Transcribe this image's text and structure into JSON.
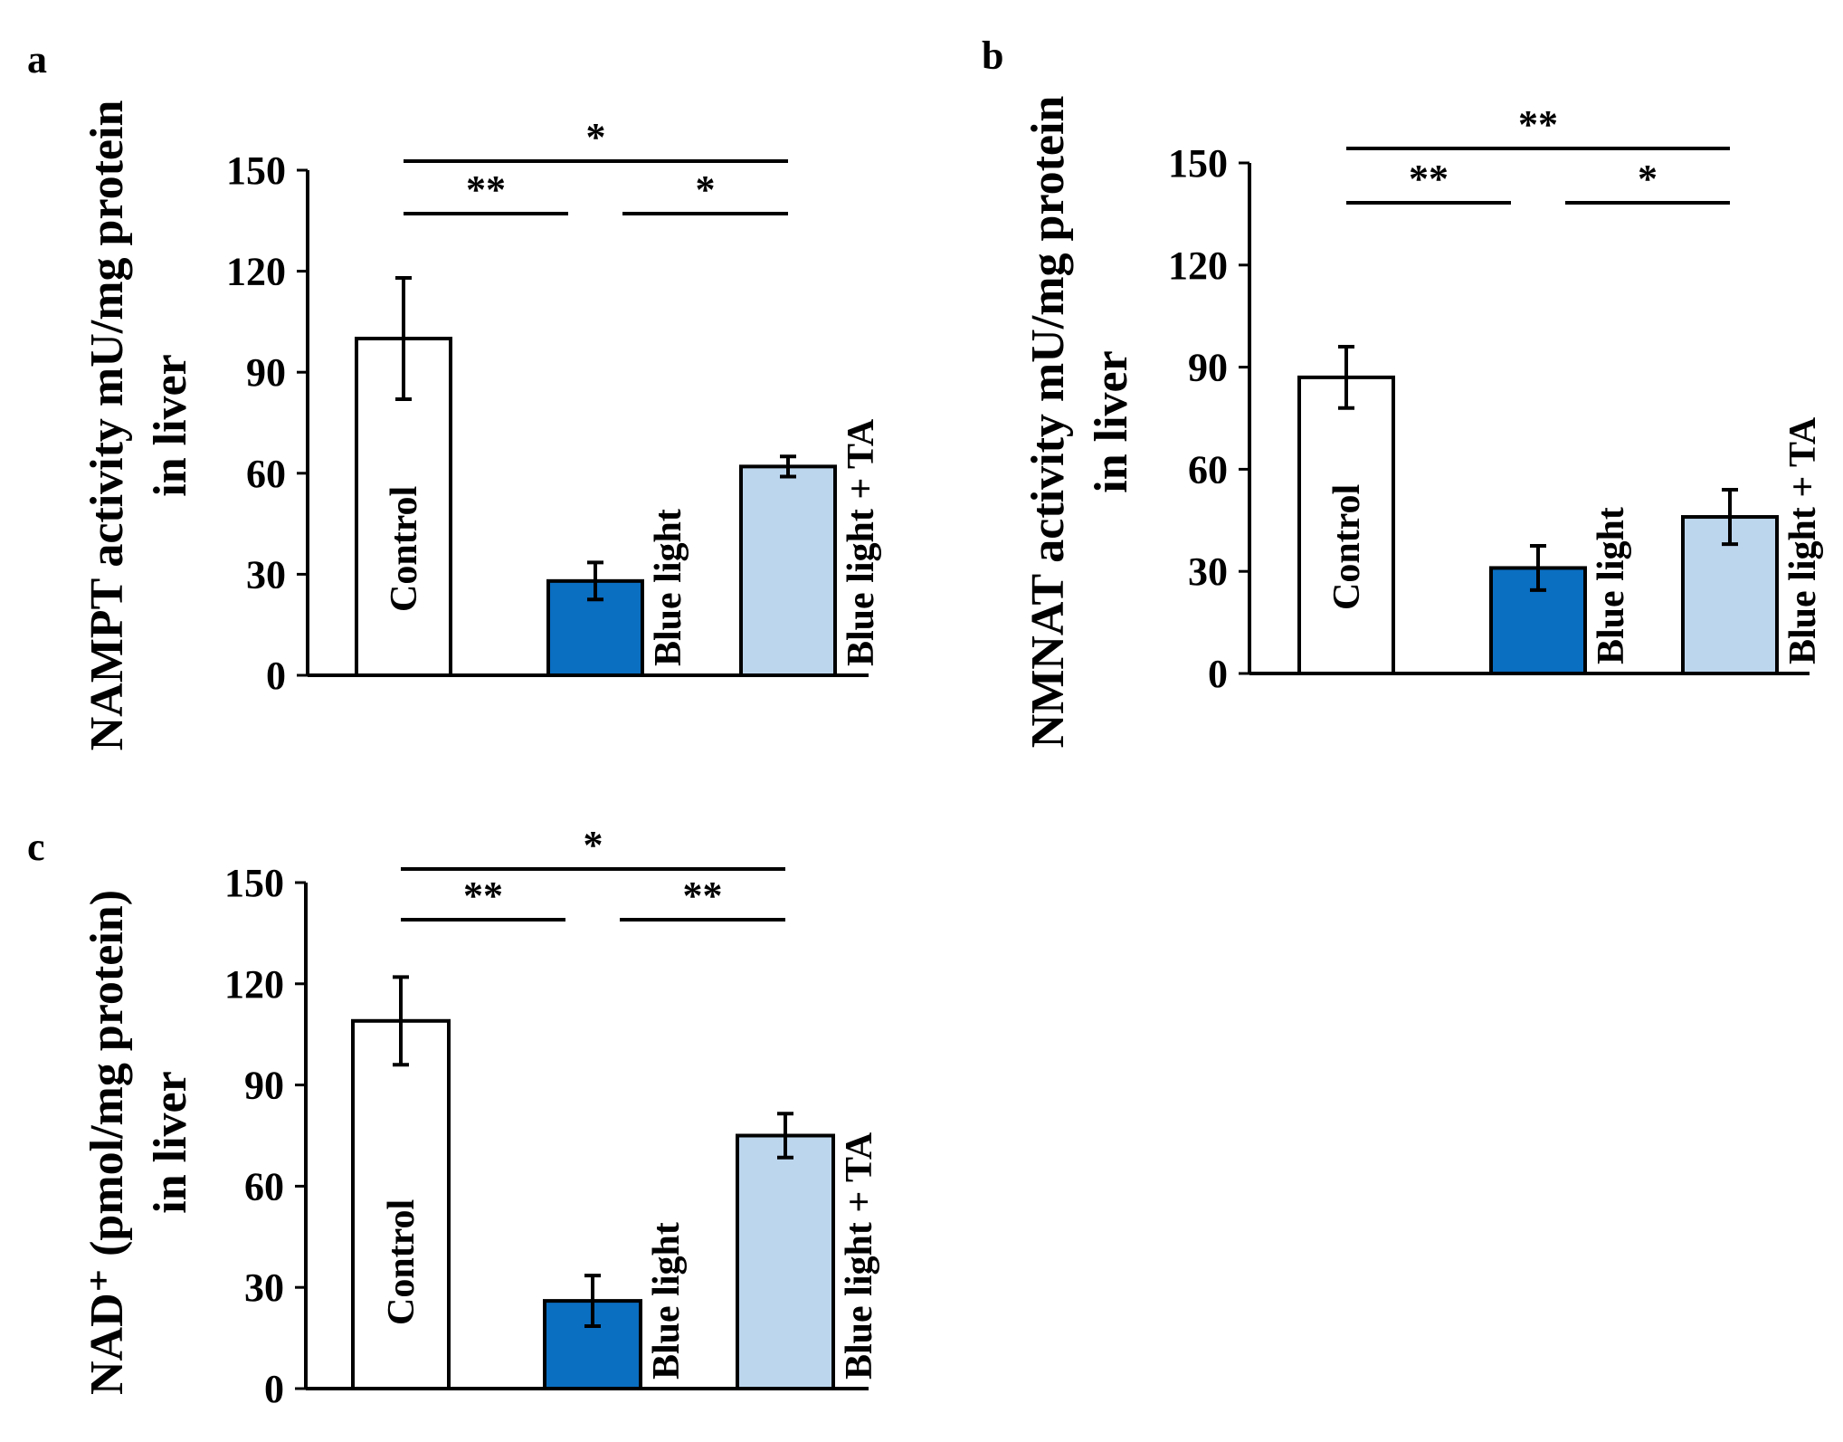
{
  "chart_data": [
    {
      "type": "bar",
      "panel": "a",
      "ylabel_lines": [
        "NAMPT activity mU/mg protein",
        "in liver"
      ],
      "ylim": [
        0,
        150
      ],
      "yticks": [
        "0",
        "30",
        "60",
        "90",
        "120",
        "150"
      ],
      "categories": [
        "Control",
        "Blue light",
        "Blue light + TA"
      ],
      "values": [
        100,
        28,
        62
      ],
      "errors": [
        18,
        5.5,
        3
      ],
      "colors": [
        "#ffffff",
        "#0a6ec1",
        "#bcd6ee"
      ],
      "significance": [
        {
          "from": 0,
          "to": 1,
          "label": "**",
          "level": 1
        },
        {
          "from": 1,
          "to": 2,
          "label": "*",
          "level": 1
        },
        {
          "from": 0,
          "to": 2,
          "label": "*",
          "level": 2
        }
      ]
    },
    {
      "type": "bar",
      "panel": "b",
      "ylabel_lines": [
        "NMNAT activity mU/mg protein",
        "in liver"
      ],
      "ylim": [
        0,
        150
      ],
      "yticks": [
        "0",
        "30",
        "60",
        "90",
        "120",
        "150"
      ],
      "categories": [
        "Control",
        "Blue light",
        "Blue light + TA"
      ],
      "values": [
        87,
        31,
        46
      ],
      "errors": [
        9,
        6.5,
        8
      ],
      "colors": [
        "#ffffff",
        "#0a6ec1",
        "#bcd6ee"
      ],
      "significance": [
        {
          "from": 0,
          "to": 1,
          "label": "**",
          "level": 1
        },
        {
          "from": 1,
          "to": 2,
          "label": "*",
          "level": 1
        },
        {
          "from": 0,
          "to": 2,
          "label": "**",
          "level": 2
        }
      ]
    },
    {
      "type": "bar",
      "panel": "c",
      "ylabel_lines": [
        "NAD⁺ (pmol/mg protein)",
        "in liver"
      ],
      "ylim": [
        0,
        150
      ],
      "yticks": [
        "0",
        "30",
        "60",
        "90",
        "120",
        "150"
      ],
      "categories": [
        "Control",
        "Blue light",
        "Blue light + TA"
      ],
      "values": [
        109,
        26,
        75
      ],
      "errors": [
        13,
        7.5,
        6.5
      ],
      "colors": [
        "#ffffff",
        "#0a6ec1",
        "#bcd6ee"
      ],
      "significance": [
        {
          "from": 0,
          "to": 1,
          "label": "**",
          "level": 1
        },
        {
          "from": 1,
          "to": 2,
          "label": "**",
          "level": 1
        },
        {
          "from": 0,
          "to": 2,
          "label": "*",
          "level": 2
        }
      ]
    }
  ]
}
